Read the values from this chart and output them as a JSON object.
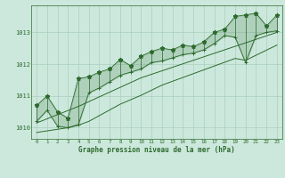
{
  "hours": [
    0,
    1,
    2,
    3,
    4,
    5,
    6,
    7,
    8,
    9,
    10,
    11,
    12,
    13,
    14,
    15,
    16,
    17,
    18,
    19,
    20,
    21,
    22,
    23
  ],
  "max_values": [
    1010.7,
    1011.0,
    1010.5,
    1010.3,
    1011.55,
    1011.6,
    1011.75,
    1011.85,
    1012.15,
    1011.95,
    1012.25,
    1012.4,
    1012.5,
    1012.45,
    1012.6,
    1012.55,
    1012.7,
    1013.0,
    1013.1,
    1013.5,
    1013.55,
    1013.6,
    1013.2,
    1013.55
  ],
  "min_values": [
    1010.2,
    1010.55,
    1010.05,
    1010.0,
    1010.1,
    1011.1,
    1011.25,
    1011.45,
    1011.65,
    1011.75,
    1011.85,
    1012.05,
    1012.1,
    1012.2,
    1012.3,
    1012.35,
    1012.45,
    1012.65,
    1012.9,
    1012.85,
    1012.05,
    1012.9,
    1013.0,
    1013.05
  ],
  "trend_upper": [
    1010.15,
    1010.28,
    1010.41,
    1010.54,
    1010.67,
    1010.82,
    1010.97,
    1011.12,
    1011.27,
    1011.42,
    1011.57,
    1011.68,
    1011.79,
    1011.9,
    1012.01,
    1012.12,
    1012.23,
    1012.34,
    1012.45,
    1012.56,
    1012.67,
    1012.78,
    1012.89,
    1013.0
  ],
  "trend_lower": [
    1009.85,
    1009.9,
    1009.95,
    1010.0,
    1010.08,
    1010.2,
    1010.38,
    1010.56,
    1010.74,
    1010.88,
    1011.02,
    1011.18,
    1011.34,
    1011.46,
    1011.58,
    1011.7,
    1011.82,
    1011.94,
    1012.06,
    1012.18,
    1012.12,
    1012.28,
    1012.44,
    1012.6
  ],
  "bg_color": "#cce8dc",
  "grid_color": "#aacfbe",
  "line_color": "#2d6a2d",
  "xlabel": "Graphe pression niveau de la mer (hPa)",
  "ylim": [
    1009.65,
    1013.85
  ],
  "yticks": [
    1010,
    1011,
    1012,
    1013
  ],
  "xlim": [
    -0.5,
    23.5
  ]
}
